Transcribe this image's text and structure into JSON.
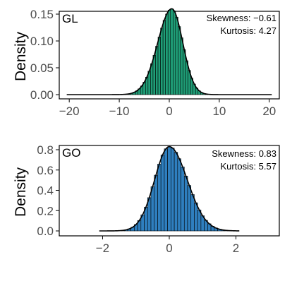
{
  "chart_data": [
    {
      "type": "bar",
      "panel_label": "GL",
      "ylabel": "Density",
      "xlim": [
        -22,
        22
      ],
      "ylim": [
        0,
        0.16
      ],
      "x_ticks": [
        -20,
        -10,
        0,
        10,
        20
      ],
      "y_ticks": [
        0.0,
        0.05,
        0.1,
        0.15
      ],
      "x_tick_labels": [
        "−20",
        "−10",
        "0",
        "10",
        "20"
      ],
      "y_tick_labels": [
        "0.00",
        "0.05",
        "0.10",
        "0.15"
      ],
      "bin_width": 0.5,
      "color": "#1f9e77",
      "annotations": [
        "Skewness: −0.61",
        "Kurtosis: 4.27"
      ],
      "density_curve": {
        "center": 0.5,
        "left_sd": 2.8,
        "right_sd": 2.2,
        "peak": 0.16
      },
      "grid": false
    },
    {
      "type": "bar",
      "panel_label": "GO",
      "ylabel": "Density",
      "xlim": [
        -3.3,
        3.3
      ],
      "ylim": [
        0,
        0.85
      ],
      "x_ticks": [
        -2,
        0,
        2
      ],
      "y_ticks": [
        0.0,
        0.2,
        0.4,
        0.6,
        0.8
      ],
      "x_tick_labels": [
        "−2",
        "0",
        "2"
      ],
      "y_tick_labels": [
        "0.0",
        "0.2",
        "0.4",
        "0.6",
        "0.8"
      ],
      "bin_width": 0.1,
      "color": "#2f7fbf",
      "annotations": [
        "Skewness: 0.83",
        "Kurtosis: 5.57"
      ],
      "density_curve": {
        "center": 0.0,
        "left_sd": 0.44,
        "right_sd": 0.54,
        "peak": 0.83
      },
      "grid": false
    }
  ]
}
